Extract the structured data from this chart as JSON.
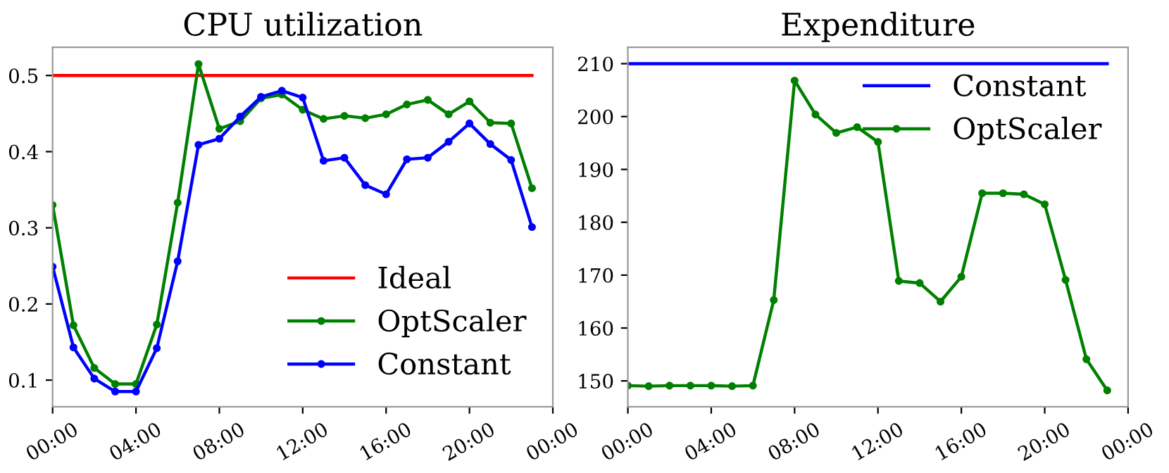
{
  "chart_data": [
    {
      "type": "line",
      "title": "CPU utilization",
      "x": [
        0,
        1,
        2,
        3,
        4,
        5,
        6,
        7,
        8,
        9,
        10,
        11,
        12,
        13,
        14,
        15,
        16,
        17,
        18,
        19,
        20,
        21,
        22,
        23
      ],
      "xlim": [
        0,
        24
      ],
      "xticks": [
        {
          "value": 0,
          "label": "00:00"
        },
        {
          "value": 4,
          "label": "04:00"
        },
        {
          "value": 8,
          "label": "08:00"
        },
        {
          "value": 12,
          "label": "12:00"
        },
        {
          "value": 16,
          "label": "16:00"
        },
        {
          "value": 20,
          "label": "20:00"
        },
        {
          "value": 24,
          "label": "00:00"
        }
      ],
      "ylim": [
        0.065,
        0.537
      ],
      "yticks": [
        0.1,
        0.2,
        0.3,
        0.4,
        0.5
      ],
      "grid": false,
      "legend": "bottom right",
      "series": [
        {
          "name": "Ideal",
          "color": "#ff0000",
          "marker": "none",
          "values": [
            0.5,
            0.5,
            0.5,
            0.5,
            0.5,
            0.5,
            0.5,
            0.5,
            0.5,
            0.5,
            0.5,
            0.5,
            0.5,
            0.5,
            0.5,
            0.5,
            0.5,
            0.5,
            0.5,
            0.5,
            0.5,
            0.5,
            0.5,
            0.5
          ]
        },
        {
          "name": "OptScaler",
          "color": "#008000",
          "marker": "circle",
          "values": [
            0.33,
            0.172,
            0.116,
            0.095,
            0.095,
            0.173,
            0.333,
            0.515,
            0.43,
            0.44,
            0.47,
            0.475,
            0.455,
            0.443,
            0.447,
            0.444,
            0.449,
            0.462,
            0.468,
            0.449,
            0.466,
            0.438,
            0.437,
            0.352
          ]
        },
        {
          "name": "Constant",
          "color": "#0000ff",
          "marker": "circle",
          "values": [
            0.249,
            0.143,
            0.102,
            0.085,
            0.085,
            0.142,
            0.256,
            0.409,
            0.417,
            0.446,
            0.472,
            0.48,
            0.471,
            0.388,
            0.392,
            0.356,
            0.344,
            0.39,
            0.392,
            0.413,
            0.437,
            0.41,
            0.389,
            0.301
          ]
        }
      ]
    },
    {
      "type": "line",
      "title": "Expenditure",
      "x": [
        0,
        1,
        2,
        3,
        4,
        5,
        6,
        7,
        8,
        9,
        10,
        11,
        12,
        13,
        14,
        15,
        16,
        17,
        18,
        19,
        20,
        21,
        22,
        23
      ],
      "xlim": [
        0,
        24
      ],
      "xticks": [
        {
          "value": 0,
          "label": "00:00"
        },
        {
          "value": 4,
          "label": "04:00"
        },
        {
          "value": 8,
          "label": "08:00"
        },
        {
          "value": 12,
          "label": "12:00"
        },
        {
          "value": 16,
          "label": "16:00"
        },
        {
          "value": 20,
          "label": "20:00"
        },
        {
          "value": 24,
          "label": "00:00"
        }
      ],
      "ylim": [
        145.1,
        213.1
      ],
      "yticks": [
        150,
        160,
        170,
        180,
        190,
        200,
        210
      ],
      "grid": false,
      "legend": "top right",
      "series": [
        {
          "name": "Constant",
          "color": "#0000ff",
          "marker": "none",
          "values": [
            210,
            210,
            210,
            210,
            210,
            210,
            210,
            210,
            210,
            210,
            210,
            210,
            210,
            210,
            210,
            210,
            210,
            210,
            210,
            210,
            210,
            210,
            210,
            210
          ]
        },
        {
          "name": "OptScaler",
          "color": "#008000",
          "marker": "circle",
          "values": [
            149.1,
            149.0,
            149.1,
            149.1,
            149.1,
            149.0,
            149.1,
            165.3,
            206.8,
            200.4,
            196.9,
            198.0,
            195.2,
            168.9,
            168.5,
            165.0,
            169.7,
            185.5,
            185.5,
            185.3,
            183.4,
            169.1,
            154.1,
            148.2
          ]
        }
      ]
    }
  ]
}
